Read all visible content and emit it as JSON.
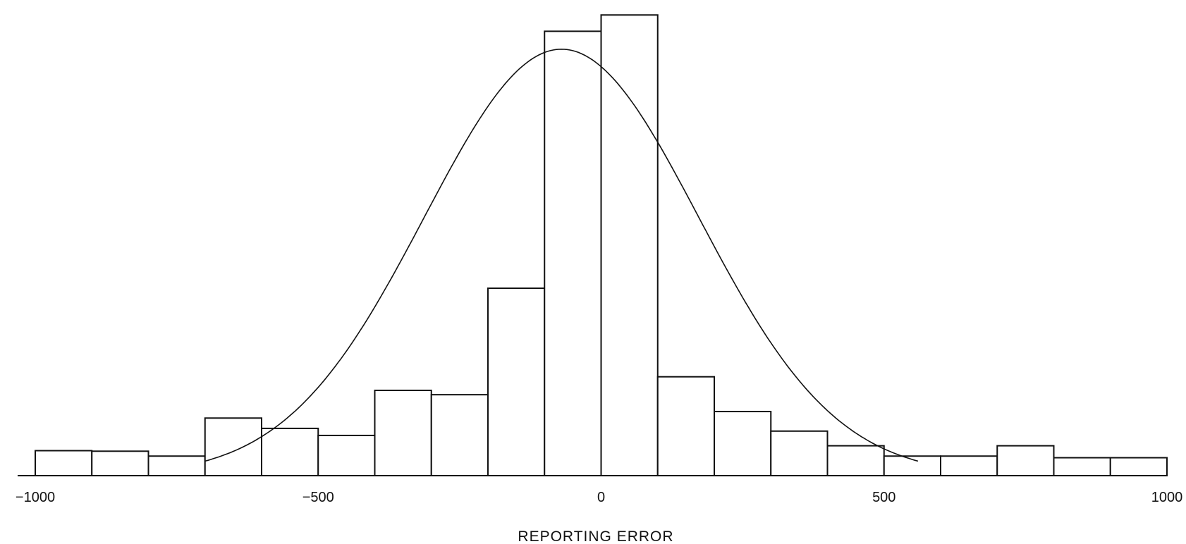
{
  "chart_data": {
    "type": "bar",
    "xlabel": "REPORTING ERROR",
    "xlim": [
      -1000,
      1000
    ],
    "x_ticks": [
      -1000,
      -500,
      0,
      500,
      1000
    ],
    "x_tick_labels": [
      "−1000",
      "−500",
      "0",
      "500",
      "1000"
    ],
    "bin_width": 100,
    "bins": [
      {
        "start": -1000,
        "end": -900,
        "value": 4.6
      },
      {
        "start": -900,
        "end": -800,
        "value": 4.5
      },
      {
        "start": -800,
        "end": -700,
        "value": 3.6
      },
      {
        "start": -700,
        "end": -600,
        "value": 10.6
      },
      {
        "start": -600,
        "end": -500,
        "value": 8.7
      },
      {
        "start": -500,
        "end": -400,
        "value": 7.4
      },
      {
        "start": -400,
        "end": -300,
        "value": 15.7
      },
      {
        "start": -300,
        "end": -200,
        "value": 14.9
      },
      {
        "start": -200,
        "end": -100,
        "value": 34.5
      },
      {
        "start": -100,
        "end": 0,
        "value": 81.8
      },
      {
        "start": 0,
        "end": 100,
        "value": 84.8
      },
      {
        "start": 100,
        "end": 200,
        "value": 18.2
      },
      {
        "start": 200,
        "end": 300,
        "value": 11.8
      },
      {
        "start": 300,
        "end": 400,
        "value": 8.2
      },
      {
        "start": 400,
        "end": 500,
        "value": 5.5
      },
      {
        "start": 500,
        "end": 600,
        "value": 3.6
      },
      {
        "start": 600,
        "end": 700,
        "value": 3.6
      },
      {
        "start": 700,
        "end": 800,
        "value": 5.5
      },
      {
        "start": 800,
        "end": 900,
        "value": 3.3
      },
      {
        "start": 900,
        "end": 1000,
        "value": 3.3
      }
    ],
    "fitted_curve": {
      "type": "normal",
      "peak_x": -70,
      "peak_value": 78.5,
      "x_start": -700,
      "x_end": 560
    },
    "ylim": [
      0,
      86
    ]
  }
}
